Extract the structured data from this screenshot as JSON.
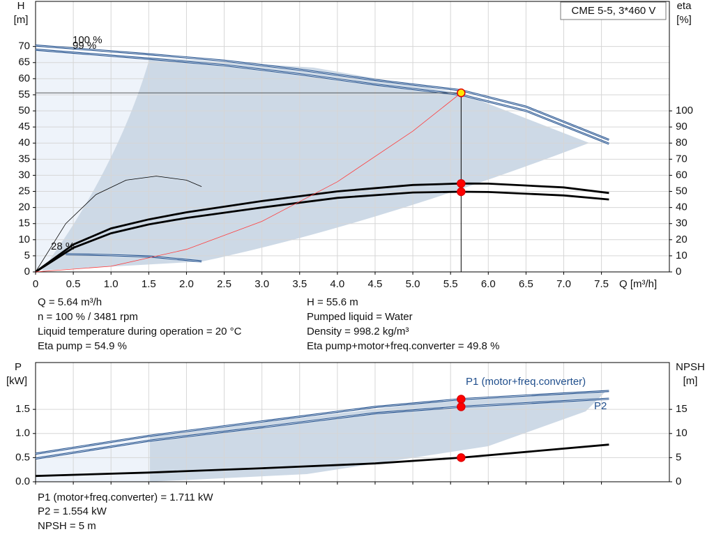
{
  "chart_data": [
    {
      "type": "line",
      "model": "CME 5-5, 3*460 V",
      "y_label": "H",
      "y_unit": "[m]",
      "y2_label": "eta",
      "y2_unit": "[%]",
      "x_label": "Q [m³/h]",
      "xlim": [
        0,
        8.4
      ],
      "ylim": [
        0,
        84
      ],
      "y2lim": [
        0,
        168
      ],
      "xticks": [
        0,
        0.5,
        {
          "value": 1,
          "label": "1.0"
        },
        1.5,
        {
          "value": 2,
          "label": "2.0"
        },
        2.5,
        {
          "value": 3,
          "label": "3.0"
        },
        3.5,
        {
          "value": 4,
          "label": "4.0"
        },
        4.5,
        {
          "value": 5,
          "label": "5.0"
        },
        5.5,
        {
          "value": 6,
          "label": "6.0"
        },
        6.5,
        {
          "value": 7,
          "label": "7.0"
        },
        7.5
      ],
      "yticks": [
        0,
        5,
        10,
        15,
        20,
        25,
        30,
        35,
        40,
        45,
        50,
        55,
        60,
        65,
        70
      ],
      "y2ticks": [
        0,
        10,
        20,
        30,
        40,
        50,
        60,
        70,
        80,
        90,
        100
      ],
      "grid": true,
      "series": [
        {
          "name": "100 %",
          "color": "#1f4e8c",
          "x": [
            0,
            1.5,
            2.5,
            3.5,
            4.5,
            5.64,
            6.5,
            7.6
          ],
          "values": [
            70.3,
            67.6,
            65.6,
            62.8,
            59.6,
            56.4,
            51.3,
            41
          ]
        },
        {
          "name": "99 %",
          "color": "#1f4e8c",
          "x": [
            0,
            1.5,
            2.5,
            3.5,
            4.5,
            5.64,
            6.5,
            7.6
          ],
          "values": [
            69,
            66.2,
            64.2,
            61.4,
            58.2,
            55,
            50,
            39.8
          ]
        },
        {
          "name": "28 %",
          "color": "#1f4e8c",
          "x": [
            0.4,
            1,
            1.5,
            2.2
          ],
          "values": [
            5.5,
            5.2,
            4.8,
            3.3
          ]
        },
        {
          "color": "#000000",
          "axis": "y2",
          "x": [
            0,
            0.5,
            1,
            1.5,
            2,
            3,
            4,
            5,
            5.64,
            6,
            7,
            7.6
          ],
          "values": [
            0,
            17,
            27,
            32.6,
            37,
            44,
            50,
            54,
            54.9,
            54.8,
            52.5,
            49
          ]
        },
        {
          "color": "#000000",
          "axis": "y2",
          "x": [
            0,
            0.5,
            1,
            1.5,
            2,
            3,
            4,
            5,
            5.64,
            6,
            7,
            7.6
          ],
          "values": [
            0,
            15,
            24,
            29.5,
            33.5,
            40,
            46,
            49.3,
            49.8,
            49.6,
            47.5,
            45
          ]
        },
        {
          "color": "#000000",
          "axis": "y2",
          "x": [
            0,
            0.4,
            0.8,
            1.2,
            1.6,
            2,
            2.2
          ],
          "values": [
            0,
            30,
            48,
            57,
            59.5,
            57,
            53
          ]
        },
        {
          "color": "#ff3b3b",
          "x": [
            0,
            1,
            2,
            3,
            4,
            5,
            5.64
          ],
          "values": [
            0,
            1.75,
            7,
            15.7,
            28,
            43.7,
            55.6
          ]
        }
      ],
      "points": [
        {
          "x": 5.64,
          "y": 55.6,
          "color": "#ffe600"
        },
        {
          "x": 5.64,
          "y": 54.9,
          "axis": "y2",
          "color": "#ff0000"
        },
        {
          "x": 5.64,
          "y": 49.8,
          "axis": "y2",
          "color": "#ff0000"
        }
      ],
      "info": [
        "Q = 5.64 m³/h",
        "n = 100 % / 3481 rpm",
        "Liquid temperature during operation = 20 °C",
        "Eta pump = 54.9 %",
        "H = 55.6 m",
        "Pumped liquid = Water",
        "Density = 998.2 kg/m³",
        "Eta pump+motor+freq.converter = 49.8 %"
      ]
    },
    {
      "type": "line",
      "y_label": "P",
      "y_unit": "[kW]",
      "y2_label": "NPSH",
      "y2_unit": "[m]",
      "xlim": [
        0,
        8.4
      ],
      "ylim": [
        0,
        2.47
      ],
      "y2lim": [
        0,
        24.7
      ],
      "xticks": [
        0,
        0.5,
        1,
        1.5,
        2,
        2.5,
        3,
        3.5,
        4,
        4.5,
        5,
        5.5,
        6,
        6.5,
        7,
        7.5
      ],
      "yticks": [
        {
          "value": 0,
          "label": "0.0"
        },
        0.5,
        {
          "value": 1,
          "label": "1.0"
        },
        1.5
      ],
      "y2ticks": [
        0,
        5,
        10,
        15
      ],
      "grid": true,
      "series": [
        {
          "name": "P1 (motor+freq.converter)",
          "color": "#1f4e8c",
          "x": [
            0,
            1.5,
            3,
            4.5,
            5.64,
            7.6
          ],
          "values": [
            0.58,
            0.95,
            1.25,
            1.55,
            1.711,
            1.88
          ]
        },
        {
          "name": "P2",
          "color": "#1f4e8c",
          "x": [
            0,
            1.5,
            3,
            4.5,
            5.64,
            7.6
          ],
          "values": [
            0.48,
            0.85,
            1.13,
            1.42,
            1.554,
            1.72
          ]
        },
        {
          "color": "#000000",
          "axis": "y2",
          "x": [
            0,
            1.5,
            3,
            4.5,
            5.64,
            7.6
          ],
          "values": [
            1.2,
            1.9,
            2.8,
            3.8,
            5,
            7.7
          ]
        }
      ],
      "points": [
        {
          "x": 5.64,
          "y": 1.711,
          "color": "#ff0000"
        },
        {
          "x": 5.64,
          "y": 1.554,
          "color": "#ff0000"
        },
        {
          "x": 5.64,
          "y": 5,
          "axis": "y2",
          "color": "#ff0000"
        }
      ],
      "info": [
        "P1 (motor+freq.converter) = 1.711 kW",
        "P2 = 1.554 kW",
        "NPSH = 5 m"
      ]
    }
  ]
}
